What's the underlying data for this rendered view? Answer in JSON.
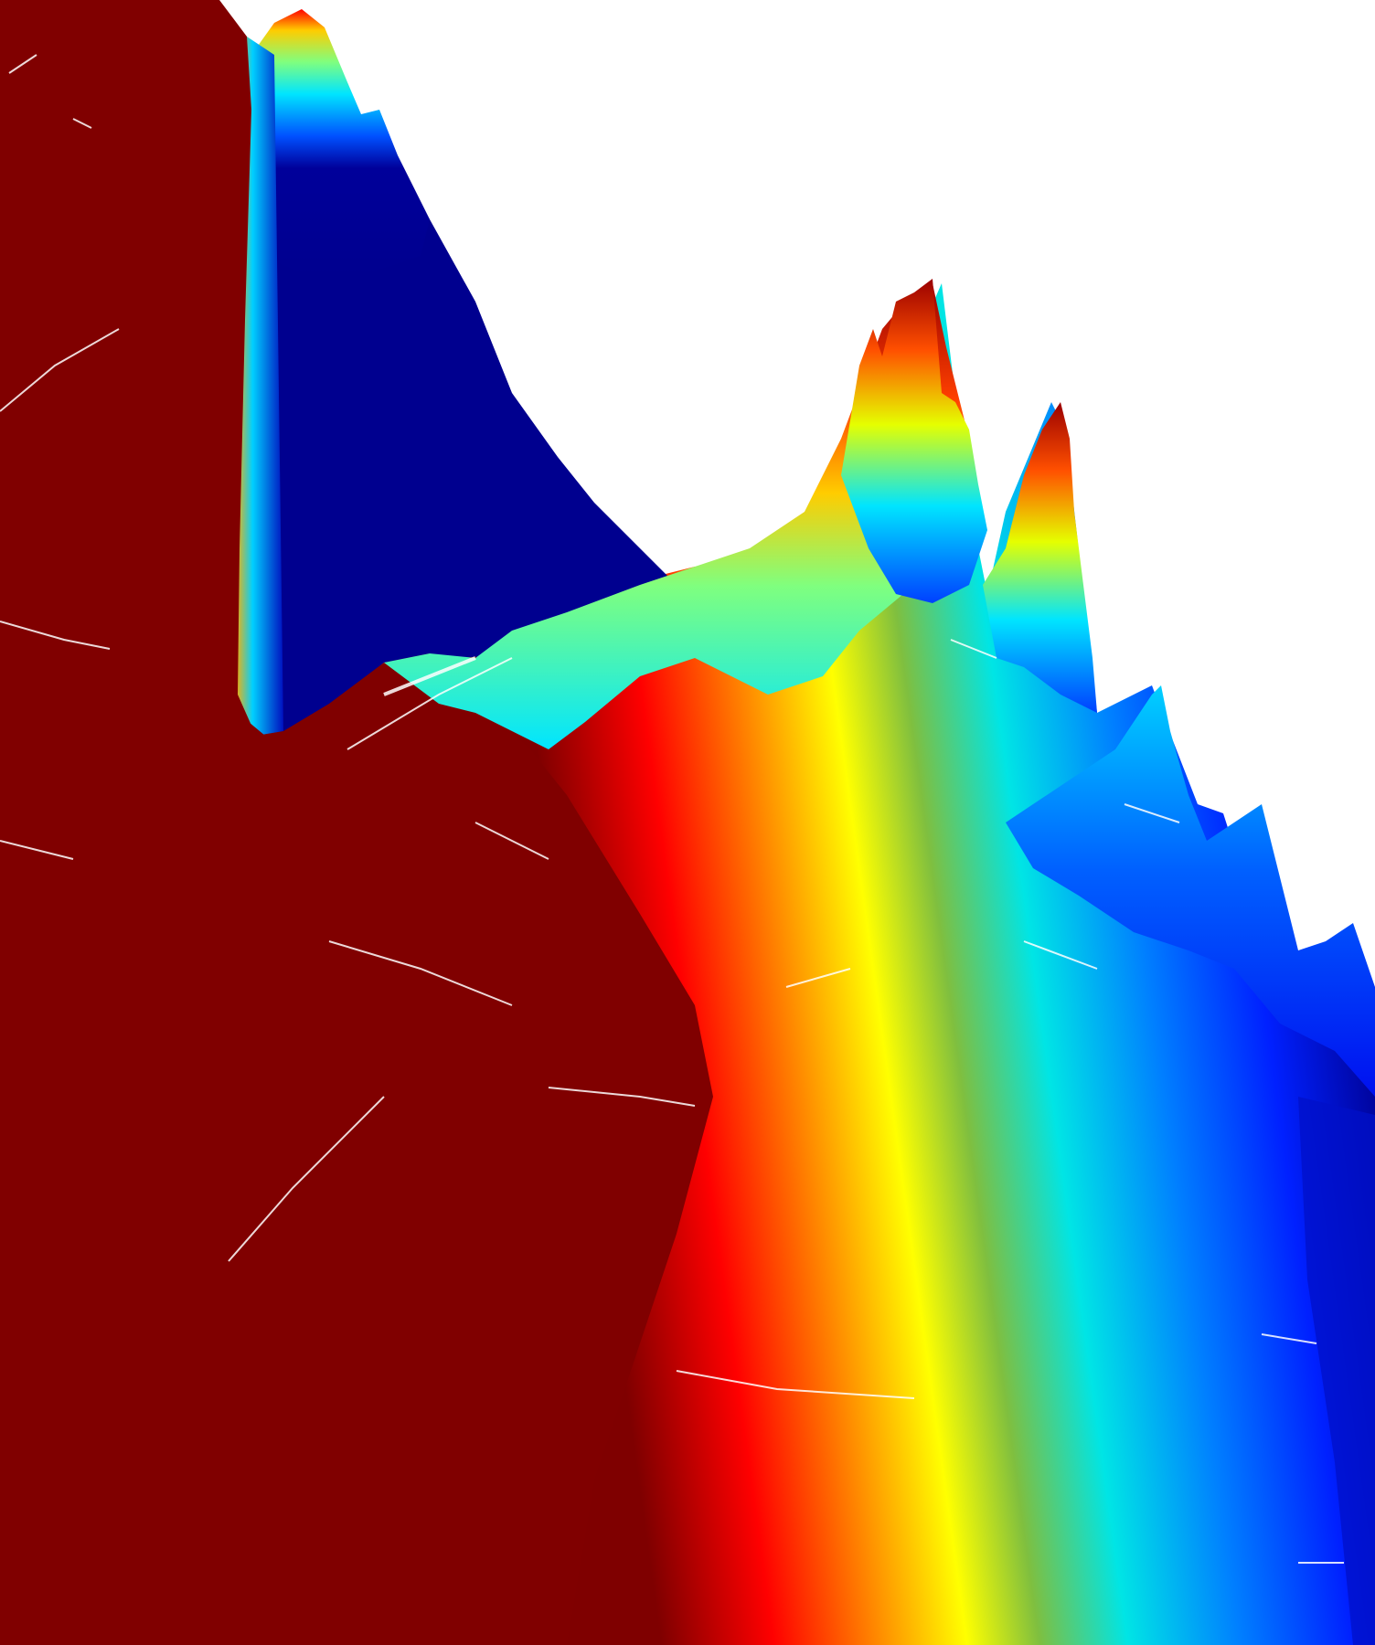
{
  "figure": {
    "subject": "3d-surface-plot",
    "colormap": "jet",
    "background_color": "#ffffff",
    "colormap_stops": [
      "#00007f",
      "#0000ff",
      "#007fff",
      "#00ffff",
      "#7fff7f",
      "#ffff00",
      "#ff7f00",
      "#ff0000",
      "#7f0000"
    ],
    "has_axes": false,
    "has_text": false
  }
}
